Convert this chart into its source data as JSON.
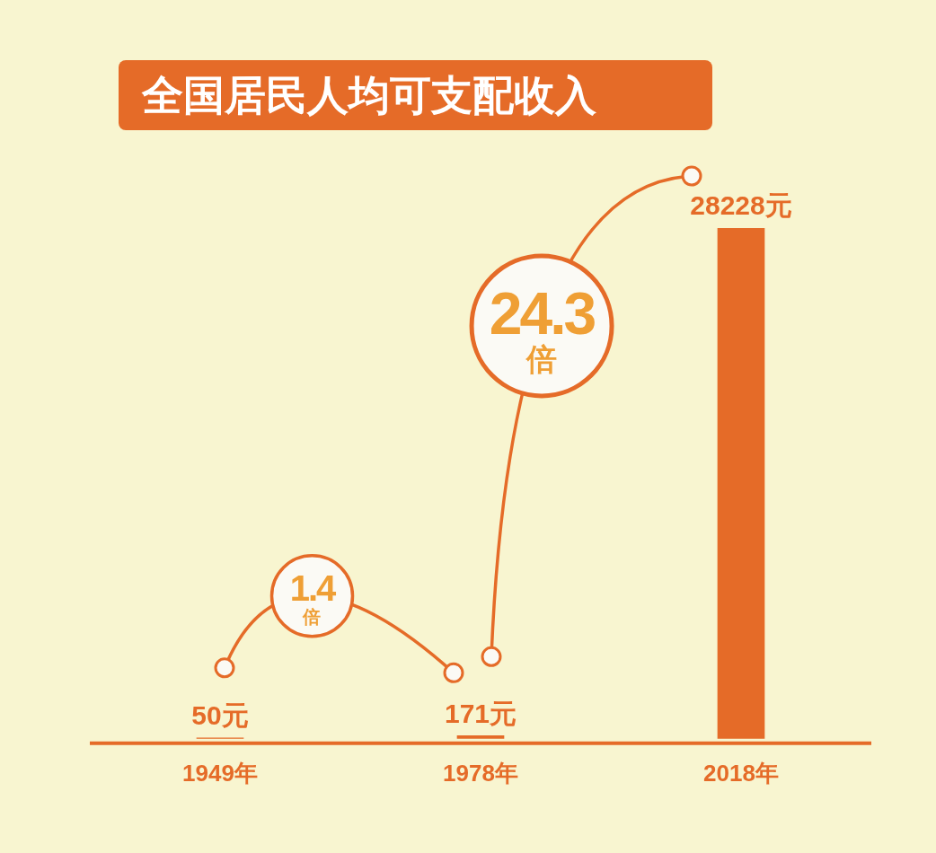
{
  "chart_data": {
    "type": "bar",
    "title": "全国居民人均可支配收入",
    "categories": [
      "1949年",
      "1978年",
      "2018年"
    ],
    "values": [
      50,
      171,
      28228
    ],
    "color": "#e56b28",
    "value_labels": [
      "50元",
      "171元",
      "28228元"
    ],
    "annotations": [
      "1.4倍",
      "24.3倍"
    ],
    "tick_labels": "x"
  }
}
